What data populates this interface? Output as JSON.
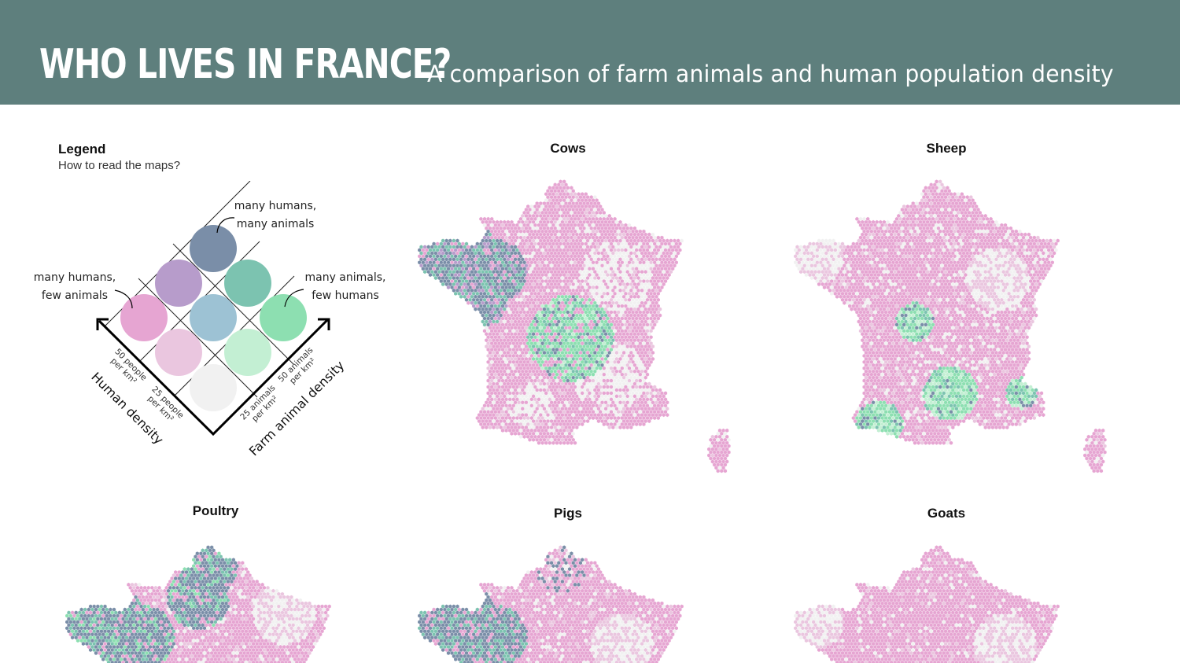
{
  "header": {
    "title": "WHO LIVES IN FRANCE?",
    "subtitle": "A comparison of farm animals and human population density"
  },
  "legend": {
    "title": "Legend",
    "subtitle": "How to read the maps?",
    "corner_labels": {
      "top": [
        "many humans,",
        "many animals"
      ],
      "left": [
        "many humans,",
        "few animals"
      ],
      "right": [
        "many animals,",
        "few humans"
      ]
    },
    "axes": {
      "human": "Human density",
      "animal": "Farm animal density"
    },
    "ticks": {
      "human_high": [
        "50 people",
        "per km²"
      ],
      "human_low": [
        "25 people",
        "per km²"
      ],
      "animal_low": [
        "25 animals",
        "per km²"
      ],
      "animal_high": [
        "50 animals",
        "per km²"
      ]
    },
    "colors": {
      "hh_ha": "#7a8ea8",
      "hm_ha": "#b79ccb",
      "hh_am": "#7cc3b0",
      "hh_al": "#e6a5d2",
      "hm_am": "#9dc2d4",
      "hl_ah": "#8ddfb1",
      "hm_al": "#eac6df",
      "hl_am": "#c3efd3",
      "hl_al": "#f1f1f1"
    }
  },
  "maps": [
    {
      "title": "Cows",
      "animal": "cow-map"
    },
    {
      "title": "Sheep",
      "animal": "sheep-map"
    },
    {
      "title": "Poultry",
      "animal": "poultry-map"
    },
    {
      "title": "Pigs",
      "animal": "pig-map"
    },
    {
      "title": "Goats",
      "animal": "goat-map"
    }
  ]
}
